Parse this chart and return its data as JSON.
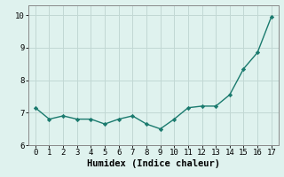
{
  "x": [
    0,
    1,
    2,
    3,
    4,
    5,
    6,
    7,
    8,
    9,
    10,
    11,
    12,
    13,
    14,
    15,
    16,
    17
  ],
  "y": [
    7.15,
    6.8,
    6.9,
    6.8,
    6.8,
    6.65,
    6.8,
    6.9,
    6.65,
    6.5,
    6.8,
    7.15,
    7.2,
    7.2,
    7.55,
    8.35,
    8.85,
    9.95
  ],
  "line_color": "#1a7a6e",
  "marker": "D",
  "marker_size": 2.2,
  "linewidth": 1.0,
  "xlabel": "Humidex (Indice chaleur)",
  "xlim": [
    -0.5,
    17.5
  ],
  "ylim": [
    6.0,
    10.3
  ],
  "yticks": [
    6,
    7,
    8,
    9,
    10
  ],
  "xticks": [
    0,
    1,
    2,
    3,
    4,
    5,
    6,
    7,
    8,
    9,
    10,
    11,
    12,
    13,
    14,
    15,
    16,
    17
  ],
  "bg_color": "#dff2ee",
  "grid_color": "#c2d8d4",
  "spine_color": "#888888",
  "tick_fontsize": 6.5,
  "label_fontsize": 7.5
}
